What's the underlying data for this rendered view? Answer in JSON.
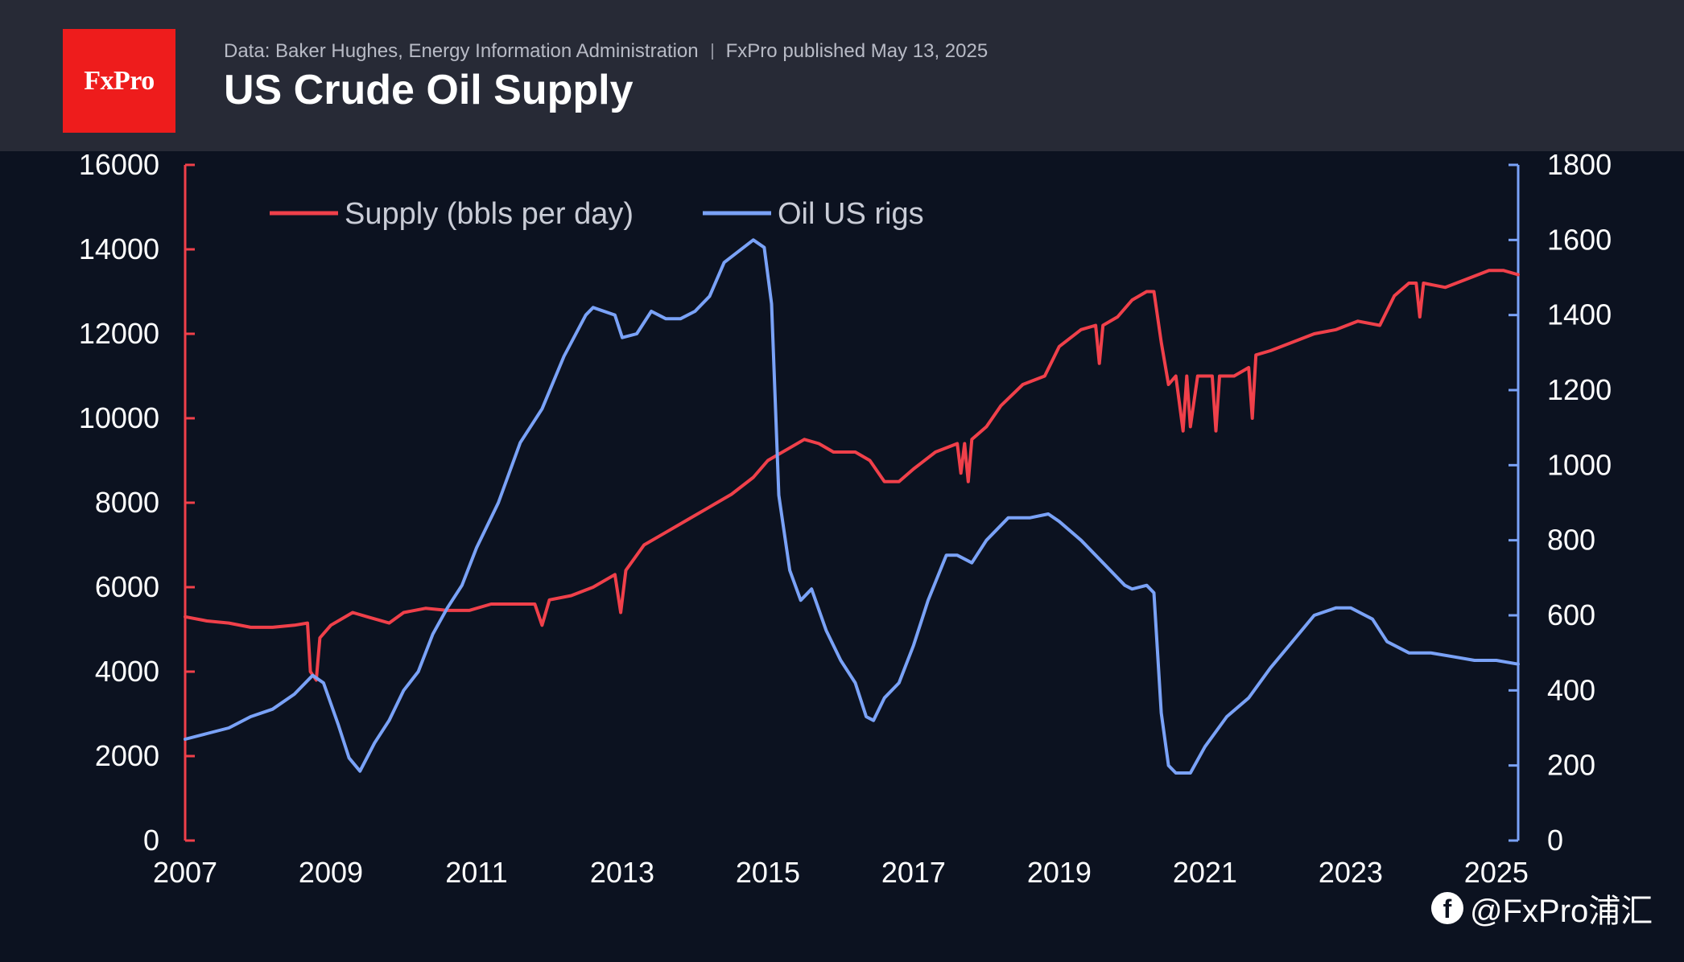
{
  "header": {
    "logo_text": "FxPro",
    "source": "Data: Baker Hughes, Energy Information Administration",
    "published": "FxPro published May 13, 2025",
    "title": "US Crude Oil Supply"
  },
  "watermark": {
    "icon": "facebook-icon",
    "text": "@FxPro浦汇"
  },
  "colors": {
    "background": "#0c1220",
    "header": "#272a36",
    "supply": "#f0404a",
    "rigs": "#7aa2f7",
    "logo": "#ee1c1c"
  },
  "chart_data": {
    "type": "line",
    "title": "US Crude Oil Supply",
    "x_ticks": [
      "2007",
      "2009",
      "2011",
      "2013",
      "2015",
      "2017",
      "2019",
      "2021",
      "2023",
      "2025"
    ],
    "xlim": [
      2007,
      2025.3
    ],
    "y_left": {
      "ticks": [
        "0",
        "2000",
        "4000",
        "6000",
        "8000",
        "10000",
        "12000",
        "14000",
        "16000"
      ],
      "lim": [
        0,
        16000
      ]
    },
    "y_right": {
      "ticks": [
        "0",
        "200",
        "400",
        "600",
        "800",
        "1000",
        "1200",
        "1400",
        "1600",
        "1800"
      ],
      "lim": [
        0,
        1800
      ]
    },
    "legend_position": "top-left",
    "grid": false,
    "series": [
      {
        "name": "Supply (bbls per day)",
        "axis": "left",
        "color": "#f0404a",
        "points": [
          [
            2007.0,
            5300
          ],
          [
            2007.3,
            5200
          ],
          [
            2007.6,
            5150
          ],
          [
            2007.9,
            5050
          ],
          [
            2008.2,
            5050
          ],
          [
            2008.5,
            5100
          ],
          [
            2008.68,
            5150
          ],
          [
            2008.72,
            4000
          ],
          [
            2008.8,
            3800
          ],
          [
            2008.85,
            4800
          ],
          [
            2009.0,
            5100
          ],
          [
            2009.3,
            5400
          ],
          [
            2009.5,
            5300
          ],
          [
            2009.8,
            5150
          ],
          [
            2010.0,
            5400
          ],
          [
            2010.3,
            5500
          ],
          [
            2010.6,
            5450
          ],
          [
            2010.9,
            5450
          ],
          [
            2011.2,
            5600
          ],
          [
            2011.5,
            5600
          ],
          [
            2011.8,
            5600
          ],
          [
            2011.9,
            5100
          ],
          [
            2012.0,
            5700
          ],
          [
            2012.3,
            5800
          ],
          [
            2012.6,
            6000
          ],
          [
            2012.9,
            6300
          ],
          [
            2012.98,
            5400
          ],
          [
            2013.05,
            6400
          ],
          [
            2013.3,
            7000
          ],
          [
            2013.6,
            7300
          ],
          [
            2013.9,
            7600
          ],
          [
            2014.2,
            7900
          ],
          [
            2014.5,
            8200
          ],
          [
            2014.8,
            8600
          ],
          [
            2015.0,
            9000
          ],
          [
            2015.3,
            9300
          ],
          [
            2015.5,
            9500
          ],
          [
            2015.7,
            9400
          ],
          [
            2015.9,
            9200
          ],
          [
            2016.2,
            9200
          ],
          [
            2016.4,
            9000
          ],
          [
            2016.6,
            8500
          ],
          [
            2016.8,
            8500
          ],
          [
            2017.0,
            8800
          ],
          [
            2017.3,
            9200
          ],
          [
            2017.6,
            9400
          ],
          [
            2017.65,
            8700
          ],
          [
            2017.7,
            9400
          ],
          [
            2017.75,
            8500
          ],
          [
            2017.8,
            9500
          ],
          [
            2018.0,
            9800
          ],
          [
            2018.2,
            10300
          ],
          [
            2018.5,
            10800
          ],
          [
            2018.8,
            11000
          ],
          [
            2019.0,
            11700
          ],
          [
            2019.3,
            12100
          ],
          [
            2019.5,
            12200
          ],
          [
            2019.55,
            11300
          ],
          [
            2019.6,
            12200
          ],
          [
            2019.8,
            12400
          ],
          [
            2020.0,
            12800
          ],
          [
            2020.2,
            13000
          ],
          [
            2020.3,
            13000
          ],
          [
            2020.4,
            11800
          ],
          [
            2020.5,
            10800
          ],
          [
            2020.6,
            11000
          ],
          [
            2020.7,
            9700
          ],
          [
            2020.75,
            11000
          ],
          [
            2020.8,
            9800
          ],
          [
            2020.9,
            11000
          ],
          [
            2021.1,
            11000
          ],
          [
            2021.15,
            9700
          ],
          [
            2021.2,
            11000
          ],
          [
            2021.4,
            11000
          ],
          [
            2021.6,
            11200
          ],
          [
            2021.65,
            10000
          ],
          [
            2021.7,
            11500
          ],
          [
            2021.9,
            11600
          ],
          [
            2022.2,
            11800
          ],
          [
            2022.5,
            12000
          ],
          [
            2022.8,
            12100
          ],
          [
            2023.1,
            12300
          ],
          [
            2023.4,
            12200
          ],
          [
            2023.6,
            12900
          ],
          [
            2023.8,
            13200
          ],
          [
            2023.9,
            13200
          ],
          [
            2023.95,
            12400
          ],
          [
            2024.0,
            13200
          ],
          [
            2024.3,
            13100
          ],
          [
            2024.6,
            13300
          ],
          [
            2024.9,
            13500
          ],
          [
            2025.1,
            13500
          ],
          [
            2025.3,
            13400
          ]
        ]
      },
      {
        "name": "Oil US rigs",
        "axis": "right",
        "color": "#7aa2f7",
        "points": [
          [
            2007.0,
            270
          ],
          [
            2007.3,
            285
          ],
          [
            2007.6,
            300
          ],
          [
            2007.9,
            330
          ],
          [
            2008.2,
            350
          ],
          [
            2008.5,
            390
          ],
          [
            2008.75,
            440
          ],
          [
            2008.9,
            420
          ],
          [
            2009.1,
            310
          ],
          [
            2009.25,
            220
          ],
          [
            2009.4,
            185
          ],
          [
            2009.6,
            260
          ],
          [
            2009.8,
            320
          ],
          [
            2010.0,
            400
          ],
          [
            2010.2,
            450
          ],
          [
            2010.4,
            550
          ],
          [
            2010.6,
            620
          ],
          [
            2010.8,
            680
          ],
          [
            2011.0,
            780
          ],
          [
            2011.3,
            900
          ],
          [
            2011.6,
            1060
          ],
          [
            2011.9,
            1150
          ],
          [
            2012.2,
            1290
          ],
          [
            2012.5,
            1400
          ],
          [
            2012.6,
            1420
          ],
          [
            2012.9,
            1400
          ],
          [
            2013.0,
            1340
          ],
          [
            2013.2,
            1350
          ],
          [
            2013.4,
            1410
          ],
          [
            2013.6,
            1390
          ],
          [
            2013.8,
            1390
          ],
          [
            2014.0,
            1410
          ],
          [
            2014.2,
            1450
          ],
          [
            2014.4,
            1540
          ],
          [
            2014.6,
            1570
          ],
          [
            2014.8,
            1600
          ],
          [
            2014.95,
            1580
          ],
          [
            2015.05,
            1430
          ],
          [
            2015.15,
            920
          ],
          [
            2015.3,
            720
          ],
          [
            2015.45,
            640
          ],
          [
            2015.6,
            670
          ],
          [
            2015.8,
            560
          ],
          [
            2016.0,
            480
          ],
          [
            2016.2,
            420
          ],
          [
            2016.35,
            330
          ],
          [
            2016.45,
            320
          ],
          [
            2016.6,
            380
          ],
          [
            2016.8,
            420
          ],
          [
            2017.0,
            520
          ],
          [
            2017.2,
            640
          ],
          [
            2017.45,
            760
          ],
          [
            2017.6,
            760
          ],
          [
            2017.8,
            740
          ],
          [
            2018.0,
            800
          ],
          [
            2018.3,
            860
          ],
          [
            2018.6,
            860
          ],
          [
            2018.85,
            870
          ],
          [
            2019.0,
            850
          ],
          [
            2019.3,
            800
          ],
          [
            2019.6,
            740
          ],
          [
            2019.9,
            680
          ],
          [
            2020.0,
            670
          ],
          [
            2020.2,
            680
          ],
          [
            2020.3,
            660
          ],
          [
            2020.4,
            340
          ],
          [
            2020.5,
            200
          ],
          [
            2020.6,
            180
          ],
          [
            2020.8,
            180
          ],
          [
            2021.0,
            250
          ],
          [
            2021.3,
            330
          ],
          [
            2021.6,
            380
          ],
          [
            2021.9,
            460
          ],
          [
            2022.2,
            530
          ],
          [
            2022.5,
            600
          ],
          [
            2022.8,
            620
          ],
          [
            2023.0,
            620
          ],
          [
            2023.3,
            590
          ],
          [
            2023.5,
            530
          ],
          [
            2023.8,
            500
          ],
          [
            2024.1,
            500
          ],
          [
            2024.4,
            490
          ],
          [
            2024.7,
            480
          ],
          [
            2025.0,
            480
          ],
          [
            2025.3,
            470
          ]
        ]
      }
    ]
  }
}
